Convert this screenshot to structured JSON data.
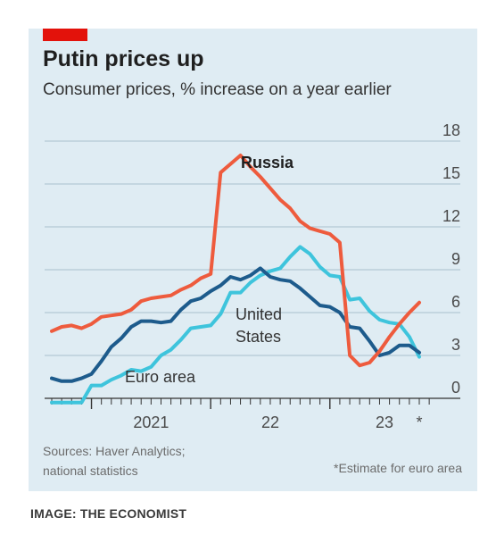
{
  "header": {
    "title": "Putin prices up",
    "subtitle": "Consumer prices, % increase on a year earlier"
  },
  "footer": {
    "sources_line1": "Sources: Haver Analytics;",
    "sources_line2": "national statistics",
    "footnote": "*Estimate for euro area",
    "image_credit": "IMAGE: THE ECONOMIST"
  },
  "colors": {
    "background": "#dfecf3",
    "russia": "#ee5b3d",
    "united_states": "#1d5b8c",
    "euro_area": "#3ec4dc",
    "grid": "#a9bfcc",
    "accent": "#e3120b"
  },
  "chart_data": {
    "type": "line",
    "title": "Putin prices up",
    "subtitle": "Consumer prices, % increase on a year earlier",
    "xlabel": "",
    "ylabel": "",
    "ylim": [
      0,
      18
    ],
    "yticks": [
      0,
      3,
      6,
      9,
      12,
      15,
      18
    ],
    "yaxis_position": "right",
    "grid": true,
    "x_start": "2020-09",
    "x_end": "2023-10",
    "x_tick_labels": [
      "2021",
      "22",
      "23",
      "*"
    ],
    "series": [
      {
        "name": "Russia",
        "key": "russia",
        "x": [
          "2020-09",
          "2020-10",
          "2020-11",
          "2020-12",
          "2021-01",
          "2021-02",
          "2021-03",
          "2021-04",
          "2021-05",
          "2021-06",
          "2021-07",
          "2021-08",
          "2021-09",
          "2021-10",
          "2021-11",
          "2021-12",
          "2022-01",
          "2022-02",
          "2022-03",
          "2022-04",
          "2022-05",
          "2022-06",
          "2022-07",
          "2022-08",
          "2022-09",
          "2022-10",
          "2022-11",
          "2022-12",
          "2023-01",
          "2023-02",
          "2023-03",
          "2023-04",
          "2023-05",
          "2023-06",
          "2023-07",
          "2023-08",
          "2023-09",
          "2023-10"
        ],
        "values": [
          4.7,
          5.0,
          5.1,
          4.9,
          5.2,
          5.7,
          5.8,
          5.9,
          6.2,
          6.8,
          7.0,
          7.1,
          7.2,
          7.6,
          7.9,
          8.4,
          8.7,
          15.8,
          16.4,
          17.0,
          16.2,
          15.5,
          14.7,
          13.9,
          13.3,
          12.4,
          11.9,
          11.7,
          11.5,
          10.9,
          3.0,
          2.3,
          2.5,
          3.3,
          4.3,
          5.2,
          6.0,
          6.7
        ]
      },
      {
        "name": "United States",
        "key": "united_states",
        "x": [
          "2020-09",
          "2020-10",
          "2020-11",
          "2020-12",
          "2021-01",
          "2021-02",
          "2021-03",
          "2021-04",
          "2021-05",
          "2021-06",
          "2021-07",
          "2021-08",
          "2021-09",
          "2021-10",
          "2021-11",
          "2021-12",
          "2022-01",
          "2022-02",
          "2022-03",
          "2022-04",
          "2022-05",
          "2022-06",
          "2022-07",
          "2022-08",
          "2022-09",
          "2022-10",
          "2022-11",
          "2022-12",
          "2023-01",
          "2023-02",
          "2023-03",
          "2023-04",
          "2023-05",
          "2023-06",
          "2023-07",
          "2023-08",
          "2023-09",
          "2023-10"
        ],
        "values": [
          1.4,
          1.2,
          1.2,
          1.4,
          1.7,
          2.6,
          3.6,
          4.2,
          5.0,
          5.4,
          5.4,
          5.3,
          5.4,
          6.2,
          6.8,
          7.0,
          7.5,
          7.9,
          8.5,
          8.3,
          8.6,
          9.1,
          8.5,
          8.3,
          8.2,
          7.7,
          7.1,
          6.5,
          6.4,
          6.0,
          5.0,
          4.9,
          4.0,
          3.0,
          3.2,
          3.7,
          3.7,
          3.2
        ]
      },
      {
        "name": "Euro area",
        "key": "euro_area",
        "x": [
          "2020-09",
          "2020-10",
          "2020-11",
          "2020-12",
          "2021-01",
          "2021-02",
          "2021-03",
          "2021-04",
          "2021-05",
          "2021-06",
          "2021-07",
          "2021-08",
          "2021-09",
          "2021-10",
          "2021-11",
          "2021-12",
          "2022-01",
          "2022-02",
          "2022-03",
          "2022-04",
          "2022-05",
          "2022-06",
          "2022-07",
          "2022-08",
          "2022-09",
          "2022-10",
          "2022-11",
          "2022-12",
          "2023-01",
          "2023-02",
          "2023-03",
          "2023-04",
          "2023-05",
          "2023-06",
          "2023-07",
          "2023-08",
          "2023-09",
          "2023-10"
        ],
        "values": [
          -0.3,
          -0.3,
          -0.3,
          -0.3,
          0.9,
          0.9,
          1.3,
          1.6,
          2.0,
          1.9,
          2.2,
          3.0,
          3.4,
          4.1,
          4.9,
          5.0,
          5.1,
          5.9,
          7.4,
          7.4,
          8.1,
          8.6,
          8.9,
          9.1,
          9.9,
          10.6,
          10.1,
          9.2,
          8.6,
          8.5,
          6.9,
          7.0,
          6.1,
          5.5,
          5.3,
          5.2,
          4.3,
          2.9
        ]
      }
    ],
    "labels": [
      {
        "text": "Russia",
        "series": "russia"
      },
      {
        "text_lines": [
          "United",
          "States"
        ],
        "series": "united_states"
      },
      {
        "text": "Euro area",
        "series": "euro_area"
      }
    ]
  }
}
